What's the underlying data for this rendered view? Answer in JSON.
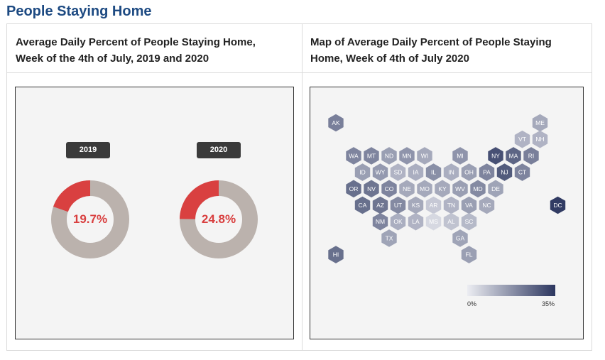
{
  "page_title": "People Staying Home",
  "panels": [
    {
      "title": "Average Daily Percent of People Staying Home, Week of the 4th of July, 2019 and 2020"
    },
    {
      "title": "Map of Average Daily Percent of People Staying Home, Week of 4th of July 2020"
    }
  ],
  "colors": {
    "title": "#1d4a82",
    "highlight": "#d94040",
    "remainder": "#bbb2ad",
    "badge": "#3a3a3a",
    "scale_low": "#ecedf2",
    "scale_high": "#2c365f"
  },
  "chart_data": [
    {
      "type": "pie",
      "variant": "donut",
      "years": [
        {
          "label": "2019",
          "value": 19.7,
          "value_label": "19.7%"
        },
        {
          "label": "2020",
          "value": 24.8,
          "value_label": "24.8%"
        }
      ]
    },
    {
      "type": "heatmap",
      "variant": "hex tile map",
      "legend": {
        "min_label": "0%",
        "max_label": "35%",
        "min": 0,
        "max": 35
      },
      "states": [
        {
          "id": "AK",
          "value": 21
        },
        {
          "id": "ME",
          "value": 13
        },
        {
          "id": "VT",
          "value": 11
        },
        {
          "id": "NH",
          "value": 11
        },
        {
          "id": "WA",
          "value": 20
        },
        {
          "id": "MT",
          "value": 20
        },
        {
          "id": "ND",
          "value": 15
        },
        {
          "id": "MN",
          "value": 17
        },
        {
          "id": "WI",
          "value": 13
        },
        {
          "id": "MI",
          "value": 17
        },
        {
          "id": "NY",
          "value": 30
        },
        {
          "id": "MA",
          "value": 26
        },
        {
          "id": "RI",
          "value": 21
        },
        {
          "id": "ID",
          "value": 15
        },
        {
          "id": "WY",
          "value": 16
        },
        {
          "id": "SD",
          "value": 11
        },
        {
          "id": "IA",
          "value": 12
        },
        {
          "id": "IL",
          "value": 18
        },
        {
          "id": "IN",
          "value": 12
        },
        {
          "id": "OH",
          "value": 15
        },
        {
          "id": "PA",
          "value": 20
        },
        {
          "id": "NJ",
          "value": 28
        },
        {
          "id": "CT",
          "value": 20
        },
        {
          "id": "OR",
          "value": 24
        },
        {
          "id": "NV",
          "value": 23
        },
        {
          "id": "CO",
          "value": 20
        },
        {
          "id": "NE",
          "value": 13
        },
        {
          "id": "MO",
          "value": 13
        },
        {
          "id": "KY",
          "value": 13
        },
        {
          "id": "WV",
          "value": 15
        },
        {
          "id": "MD",
          "value": 19
        },
        {
          "id": "DE",
          "value": 14
        },
        {
          "id": "CA",
          "value": 24
        },
        {
          "id": "AZ",
          "value": 23
        },
        {
          "id": "UT",
          "value": 19
        },
        {
          "id": "KS",
          "value": 13
        },
        {
          "id": "AR",
          "value": 7
        },
        {
          "id": "TN",
          "value": 11
        },
        {
          "id": "VA",
          "value": 15
        },
        {
          "id": "NC",
          "value": 13
        },
        {
          "id": "DC",
          "value": 34
        },
        {
          "id": "NM",
          "value": 20
        },
        {
          "id": "OK",
          "value": 12
        },
        {
          "id": "LA",
          "value": 11
        },
        {
          "id": "MS",
          "value": 4
        },
        {
          "id": "AL",
          "value": 8
        },
        {
          "id": "SC",
          "value": 10
        },
        {
          "id": "TX",
          "value": 14
        },
        {
          "id": "GA",
          "value": 14
        },
        {
          "id": "HI",
          "value": 24
        },
        {
          "id": "FL",
          "value": 15
        }
      ]
    }
  ]
}
